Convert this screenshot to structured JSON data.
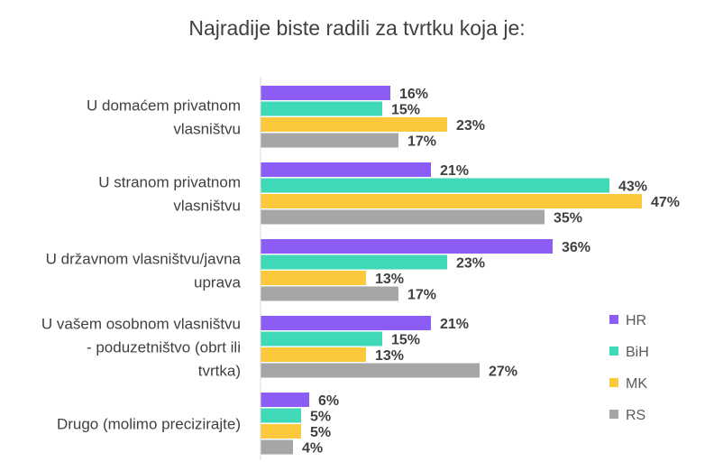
{
  "chart_data": {
    "type": "bar",
    "orientation": "horizontal",
    "title": "Najradije biste radili za tvrtku koja je:",
    "categories": [
      [
        "U domaćem privatnom",
        "vlasništvu"
      ],
      [
        "U stranom privatnom",
        "vlasništvu"
      ],
      [
        "U državnom vlasništvu/javna",
        "uprava"
      ],
      [
        "U vašem osobnom vlasništvu",
        "- poduzetništvo (obrt ili",
        "tvrtka)"
      ],
      [
        "Drugo (molimo precizirajte)"
      ]
    ],
    "series": [
      {
        "name": "HR",
        "color": "#8B5CF6",
        "values": [
          16,
          21,
          36,
          21,
          6
        ]
      },
      {
        "name": "BiH",
        "color": "#3FD9B8",
        "values": [
          15,
          43,
          23,
          15,
          5
        ]
      },
      {
        "name": "MK",
        "color": "#FCC93C",
        "values": [
          23,
          47,
          13,
          13,
          5
        ]
      },
      {
        "name": "RS",
        "color": "#A6A6A6",
        "values": [
          17,
          35,
          17,
          27,
          4
        ]
      }
    ],
    "value_suffix": "%",
    "xlim": [
      0,
      55
    ],
    "legend_position": "right",
    "axis_color": "#D9D9D9"
  }
}
